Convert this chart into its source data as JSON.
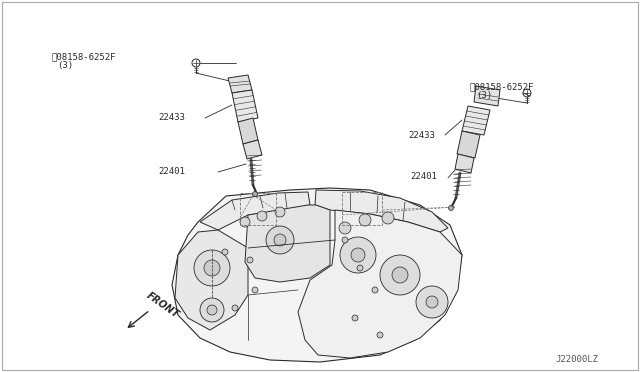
{
  "bg_color": "#ffffff",
  "line_color": "#2a2a2a",
  "text_color": "#2a2a2a",
  "diagram_id": "J22000LZ",
  "figsize": [
    6.4,
    3.72
  ],
  "dpi": 100,
  "labels": {
    "bolt_left": "08158-6252F",
    "bolt_left_qty": "(3)",
    "coil_left": "22433",
    "plug_left": "22401",
    "bolt_right": "08158-6252F",
    "bolt_right_qty": "(3)",
    "coil_right": "22433",
    "plug_right": "22401",
    "front": "FRONT"
  }
}
